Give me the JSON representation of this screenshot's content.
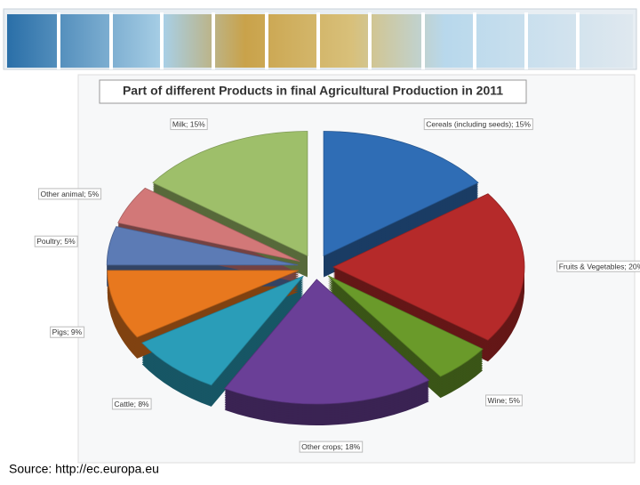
{
  "source": "Source: http://ec.europa.eu",
  "chart_data": {
    "type": "pie",
    "title": "Part of different Products in final Agricultural Production in 2011",
    "values": [
      15,
      20,
      5,
      18,
      8,
      9,
      5,
      5,
      15
    ],
    "value_labels": [
      "Cereals (including seeds); 15%",
      "Fruits & Vegetables; 20%",
      "Wine; 5%",
      "Other crops; 18%",
      "Cattle; 8%",
      "Pigs; 9%",
      "Poultry; 5%",
      "Other animal; 5%",
      "Milk; 15%"
    ],
    "colors": [
      "#2f6db5",
      "#b52a2a",
      "#6a9a2a",
      "#6a3f97",
      "#2a9db8",
      "#e8781e",
      "#5c7bb5",
      "#d27878",
      "#9ebf6a"
    ]
  }
}
